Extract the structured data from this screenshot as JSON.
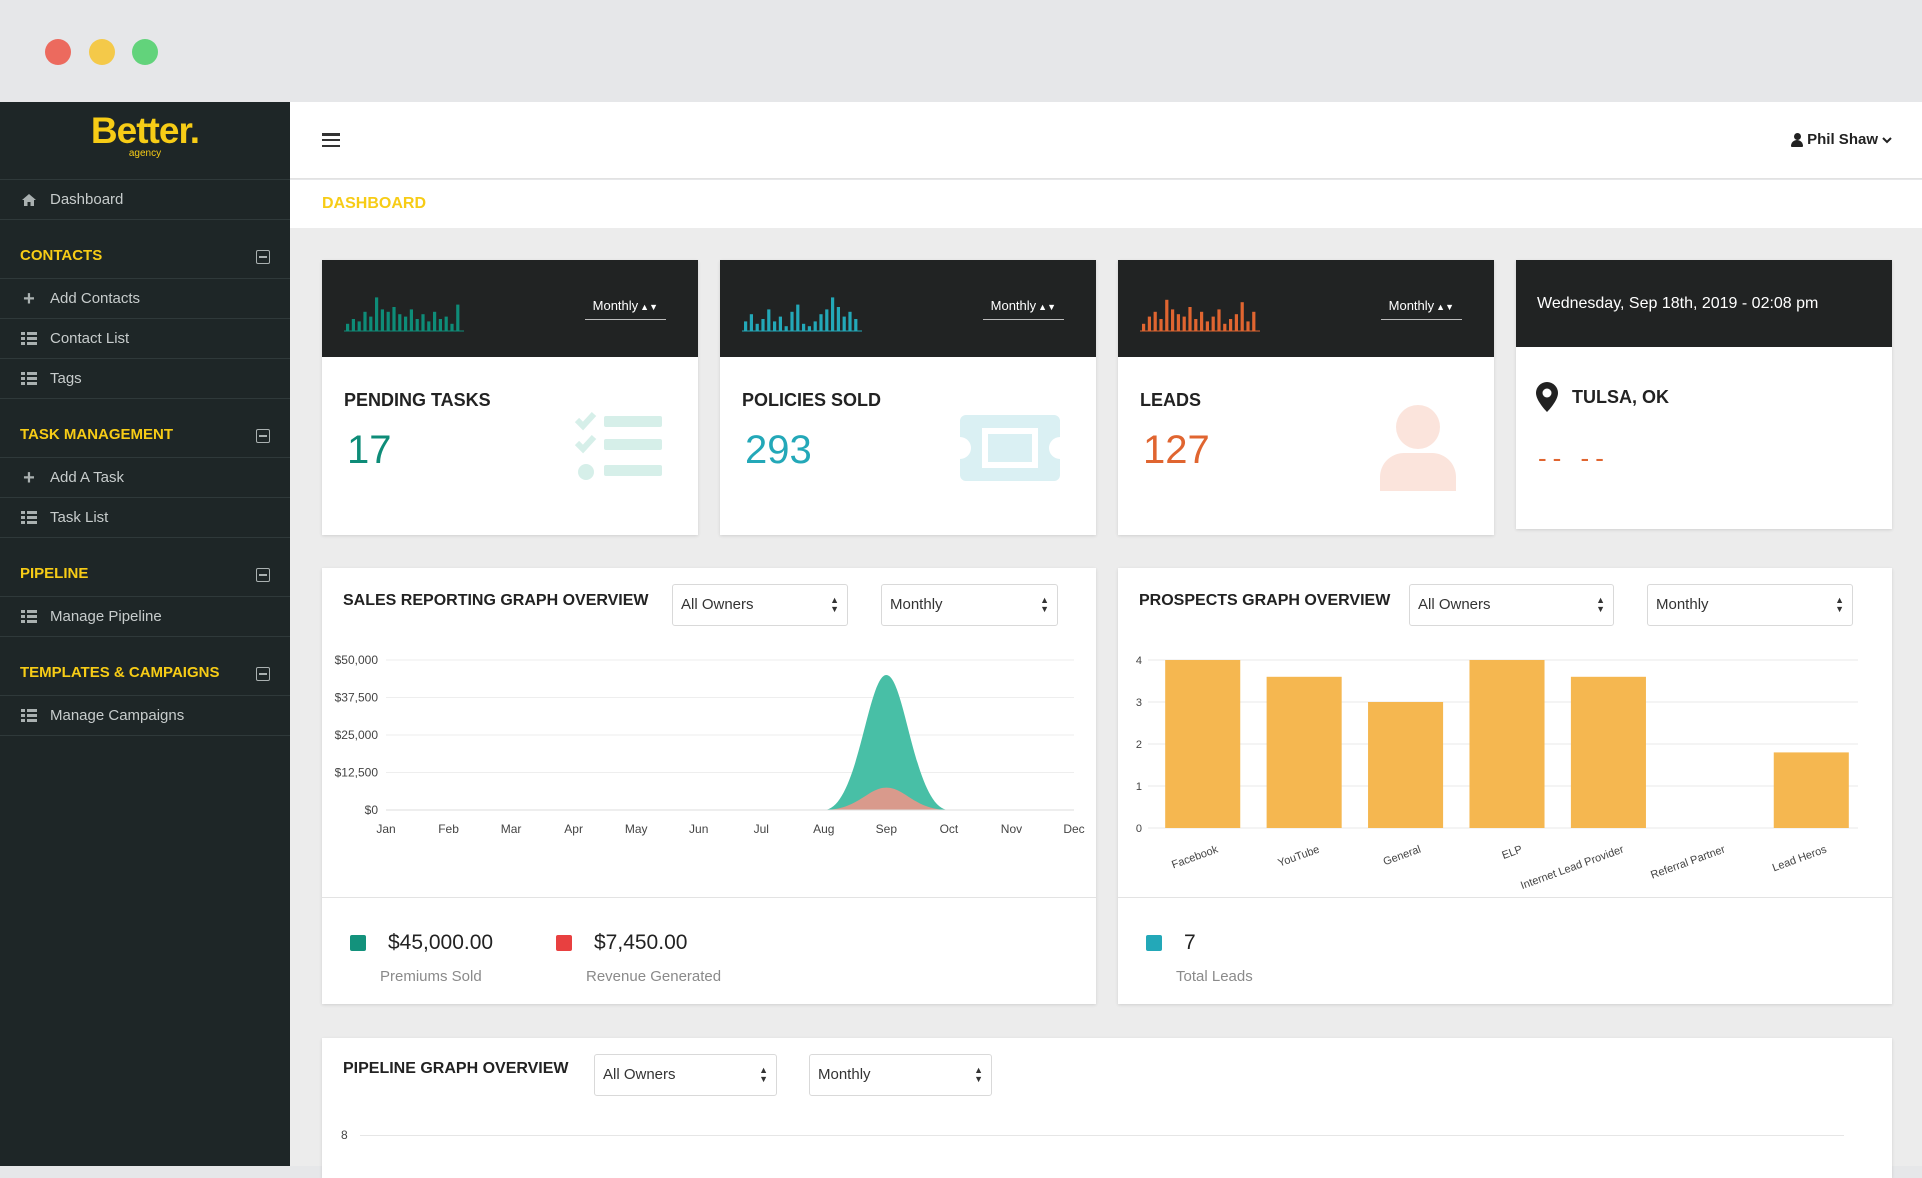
{
  "window": {
    "controls": [
      "close",
      "minimize",
      "maximize"
    ]
  },
  "brand": {
    "name": "Better.",
    "tagline": "agency",
    "color": "#f7cc16"
  },
  "sidebar": {
    "dashboard": {
      "label": "Dashboard",
      "icon": "home-icon"
    },
    "sections": [
      {
        "title": "CONTACTS",
        "items": [
          {
            "label": "Add Contacts",
            "icon": "plus-icon"
          },
          {
            "label": "Contact List",
            "icon": "list-icon"
          },
          {
            "label": "Tags",
            "icon": "list-icon"
          }
        ]
      },
      {
        "title": "TASK MANAGEMENT",
        "items": [
          {
            "label": "Add A Task",
            "icon": "plus-icon"
          },
          {
            "label": "Task List",
            "icon": "list-icon"
          }
        ]
      },
      {
        "title": "PIPELINE",
        "items": [
          {
            "label": "Manage Pipeline",
            "icon": "list-icon"
          }
        ]
      },
      {
        "title": "TEMPLATES & CAMPAIGNS",
        "items": [
          {
            "label": "Manage Campaigns",
            "icon": "list-icon"
          }
        ]
      }
    ]
  },
  "topbar": {
    "user": "Phil Shaw",
    "menu_icon": "hamburger-icon"
  },
  "breadcrumb": "DASHBOARD",
  "stats": [
    {
      "title": "PENDING TASKS",
      "value": "17",
      "period": "Monthly",
      "color": "#0e8c78",
      "icon": "checklist-icon"
    },
    {
      "title": "POLICIES SOLD",
      "value": "293",
      "period": "Monthly",
      "color": "#23a8b8",
      "icon": "ticket-icon"
    },
    {
      "title": "LEADS",
      "value": "127",
      "period": "Monthly",
      "color": "#e06530",
      "icon": "person-icon"
    }
  ],
  "datetime_card": {
    "datetime": "Wednesday, Sep 18th, 2019 - 02:08 pm",
    "location": "TULSA, OK",
    "weather": "-- --"
  },
  "sales_graph": {
    "title": "SALES REPORTING GRAPH OVERVIEW",
    "owner_select": "All Owners",
    "period_select": "Monthly",
    "legend": [
      {
        "value": "$45,000.00",
        "label": "Premiums Sold",
        "color": "#13927c"
      },
      {
        "value": "$7,450.00",
        "label": "Revenue Generated",
        "color": "#e84040"
      }
    ]
  },
  "prospects_graph": {
    "title": "PROSPECTS GRAPH OVERVIEW",
    "owner_select": "All Owners",
    "period_select": "Monthly",
    "legend": [
      {
        "value": "7",
        "label": "Total Leads",
        "color": "#23a8b8"
      }
    ]
  },
  "pipeline_graph": {
    "title": "PIPELINE GRAPH OVERVIEW",
    "owner_select": "All Owners",
    "period_select": "Monthly",
    "y_top_label": "8"
  },
  "chart_data": [
    {
      "type": "area",
      "categories": [
        "Jan",
        "Feb",
        "Mar",
        "Apr",
        "May",
        "Jun",
        "Jul",
        "Aug",
        "Sep",
        "Oct",
        "Nov",
        "Dec"
      ],
      "series": [
        {
          "values": [
            0,
            0,
            0,
            0,
            0,
            0,
            0,
            0,
            45000,
            0,
            0,
            0
          ],
          "color": "#48bfa6"
        },
        {
          "values": [
            0,
            0,
            0,
            0,
            0,
            0,
            0,
            0,
            7450,
            0,
            0,
            0
          ],
          "color": "#d99a8c"
        }
      ],
      "yticks": [
        "$0",
        "$12,500",
        "$25,000",
        "$37,500",
        "$50,000"
      ],
      "ylim": [
        0,
        50000
      ],
      "grid": true
    },
    {
      "type": "bar",
      "categories": [
        "Facebook",
        "YouTube",
        "General",
        "ELP",
        "Internet Lead Provider",
        "Referral Partner",
        "Lead Heros"
      ],
      "values": [
        4,
        3.6,
        3,
        4,
        3.6,
        0,
        1.8
      ],
      "color": "#f5b750",
      "yticks": [
        "0",
        "1",
        "2",
        "3",
        "4"
      ],
      "ylim": [
        0,
        4
      ],
      "grid": true
    }
  ]
}
